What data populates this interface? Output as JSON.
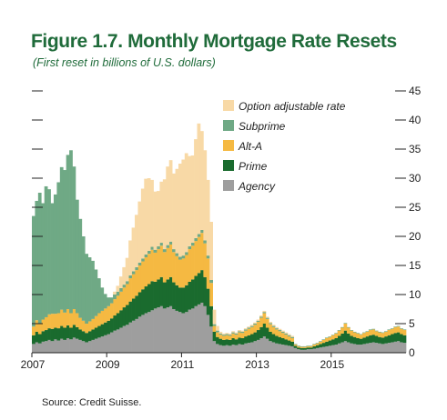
{
  "figure": {
    "title": "Figure 1.7. Monthly Mortgage Rate Resets",
    "subtitle": "(First reset in billions of U.S. dollars)",
    "source": "Source: Credit Suisse."
  },
  "chart_data": {
    "type": "area",
    "stacked": true,
    "title": "Figure 1.7. Monthly Mortgage Rate Resets",
    "subtitle": "(First reset in billions of U.S. dollars)",
    "xlabel": "",
    "ylabel": "",
    "x_start": "2007-01",
    "x_ticks": [
      "2007",
      "2009",
      "2011",
      "2013",
      "2015"
    ],
    "y_ticks": [
      "0",
      "5",
      "10",
      "15",
      "20",
      "25",
      "30",
      "35",
      "40",
      "45"
    ],
    "ylim": [
      0,
      45
    ],
    "y_axis_side": "right",
    "grid": false,
    "legend_position": "top-right",
    "x": [
      "2007-01",
      "2007-02",
      "2007-03",
      "2007-04",
      "2007-05",
      "2007-06",
      "2007-07",
      "2007-08",
      "2007-09",
      "2007-10",
      "2007-11",
      "2007-12",
      "2008-01",
      "2008-02",
      "2008-03",
      "2008-04",
      "2008-05",
      "2008-06",
      "2008-07",
      "2008-08",
      "2008-09",
      "2008-10",
      "2008-11",
      "2008-12",
      "2009-01",
      "2009-02",
      "2009-03",
      "2009-04",
      "2009-05",
      "2009-06",
      "2009-07",
      "2009-08",
      "2009-09",
      "2009-10",
      "2009-11",
      "2009-12",
      "2010-01",
      "2010-02",
      "2010-03",
      "2010-04",
      "2010-05",
      "2010-06",
      "2010-07",
      "2010-08",
      "2010-09",
      "2010-10",
      "2010-11",
      "2010-12",
      "2011-01",
      "2011-02",
      "2011-03",
      "2011-04",
      "2011-05",
      "2011-06",
      "2011-07",
      "2011-08",
      "2011-09",
      "2011-10",
      "2011-11",
      "2011-12",
      "2012-01",
      "2012-02",
      "2012-03",
      "2012-04",
      "2012-05",
      "2012-06",
      "2012-07",
      "2012-08",
      "2012-09",
      "2012-10",
      "2012-11",
      "2012-12",
      "2013-01",
      "2013-02",
      "2013-03",
      "2013-04",
      "2013-05",
      "2013-06",
      "2013-07",
      "2013-08",
      "2013-09",
      "2013-10",
      "2013-11",
      "2013-12",
      "2014-01",
      "2014-02",
      "2014-03",
      "2014-04",
      "2014-05",
      "2014-06",
      "2014-07",
      "2014-08",
      "2014-09",
      "2014-10",
      "2014-11",
      "2014-12",
      "2015-01",
      "2015-02",
      "2015-03",
      "2015-04",
      "2015-05",
      "2015-06",
      "2015-07",
      "2015-08",
      "2015-09",
      "2015-10",
      "2015-11",
      "2015-12",
      "2016-01",
      "2016-02",
      "2016-03",
      "2016-04",
      "2016-05",
      "2016-06",
      "2016-07",
      "2016-08",
      "2016-09",
      "2016-10",
      "2016-11",
      "2016-12"
    ],
    "series": [
      {
        "name": "Agency",
        "color": "#9e9e9e",
        "values": [
          1.5,
          1.8,
          1.6,
          1.9,
          2.0,
          2.2,
          2.0,
          2.3,
          2.1,
          2.4,
          2.2,
          2.5,
          2.3,
          2.6,
          2.4,
          2.2,
          2.0,
          1.8,
          2.0,
          2.2,
          2.4,
          2.6,
          2.8,
          3.0,
          3.2,
          3.5,
          3.8,
          4.0,
          4.3,
          4.6,
          4.8,
          5.2,
          5.5,
          5.8,
          6.2,
          6.5,
          6.8,
          7.0,
          7.3,
          7.6,
          7.8,
          8.0,
          7.6,
          7.8,
          8.0,
          7.5,
          7.2,
          7.0,
          6.8,
          7.0,
          7.4,
          7.6,
          8.0,
          8.3,
          8.6,
          8.0,
          6.5,
          4.5,
          2.0,
          1.5,
          1.3,
          1.2,
          1.3,
          1.2,
          1.4,
          1.3,
          1.5,
          1.4,
          1.6,
          1.7,
          1.8,
          2.0,
          2.2,
          2.5,
          2.8,
          2.4,
          2.0,
          1.8,
          1.6,
          1.5,
          1.4,
          1.3,
          1.2,
          1.1,
          0.8,
          0.6,
          0.5,
          0.5,
          0.6,
          0.6,
          0.7,
          0.8,
          0.9,
          1.0,
          1.1,
          1.2,
          1.3,
          1.4,
          1.6,
          1.8,
          2.0,
          1.8,
          1.6,
          1.5,
          1.4,
          1.4,
          1.5,
          1.6,
          1.7,
          1.8,
          1.7,
          1.6,
          1.5,
          1.6,
          1.7,
          1.8,
          1.9,
          2.0,
          1.8,
          1.7
        ]
      },
      {
        "name": "Prime",
        "color": "#1a6b2e",
        "values": [
          1.5,
          1.8,
          1.6,
          1.8,
          1.9,
          2.0,
          2.1,
          2.0,
          2.1,
          2.2,
          2.1,
          2.2,
          2.0,
          2.2,
          2.0,
          1.8,
          1.7,
          1.6,
          1.7,
          1.8,
          1.9,
          2.0,
          2.1,
          2.2,
          2.3,
          2.4,
          2.6,
          2.8,
          3.0,
          3.2,
          3.4,
          3.6,
          3.8,
          4.0,
          4.2,
          4.4,
          4.6,
          4.8,
          5.0,
          4.6,
          4.8,
          5.0,
          4.5,
          4.8,
          5.0,
          4.6,
          4.4,
          4.2,
          4.4,
          4.6,
          4.8,
          5.0,
          5.2,
          5.4,
          5.6,
          5.0,
          4.5,
          3.5,
          1.6,
          1.2,
          1.1,
          1.0,
          1.0,
          1.0,
          1.1,
          1.0,
          1.1,
          1.1,
          1.2,
          1.3,
          1.4,
          1.5,
          1.7,
          1.9,
          2.2,
          1.9,
          1.6,
          1.4,
          1.3,
          1.2,
          1.1,
          1.0,
          0.9,
          0.8,
          0.4,
          0.3,
          0.3,
          0.3,
          0.3,
          0.3,
          0.4,
          0.5,
          0.6,
          0.7,
          0.8,
          0.9,
          1.0,
          1.1,
          1.3,
          1.5,
          1.8,
          1.5,
          1.3,
          1.2,
          1.1,
          1.0,
          1.1,
          1.2,
          1.3,
          1.3,
          1.2,
          1.1,
          1.1,
          1.2,
          1.3,
          1.4,
          1.5,
          1.5,
          1.4,
          1.3
        ]
      },
      {
        "name": "Alt-A",
        "color": "#f5b942",
        "values": [
          1.5,
          2.0,
          1.8,
          2.0,
          2.2,
          2.4,
          2.6,
          2.4,
          2.6,
          2.8,
          2.6,
          2.8,
          2.5,
          2.7,
          2.4,
          2.0,
          1.8,
          1.6,
          1.7,
          1.8,
          2.0,
          2.2,
          2.3,
          2.4,
          2.5,
          2.6,
          2.8,
          3.0,
          3.2,
          3.4,
          3.6,
          4.0,
          4.2,
          4.4,
          4.6,
          4.8,
          5.0,
          5.2,
          5.4,
          5.0,
          5.2,
          5.4,
          5.2,
          5.4,
          5.6,
          5.2,
          5.0,
          4.8,
          5.0,
          5.2,
          5.6,
          5.8,
          6.0,
          6.2,
          6.4,
          5.8,
          5.2,
          4.0,
          1.0,
          0.8,
          0.7,
          0.7,
          0.7,
          0.7,
          0.8,
          0.8,
          0.9,
          0.9,
          1.0,
          1.1,
          1.2,
          1.3,
          1.4,
          1.6,
          1.8,
          1.5,
          1.3,
          1.2,
          1.1,
          1.0,
          0.9,
          0.8,
          0.7,
          0.6,
          0.2,
          0.2,
          0.2,
          0.2,
          0.2,
          0.2,
          0.3,
          0.3,
          0.4,
          0.5,
          0.6,
          0.6,
          0.7,
          0.8,
          0.9,
          1.0,
          1.2,
          1.0,
          0.9,
          0.8,
          0.8,
          0.7,
          0.8,
          0.8,
          0.9,
          0.9,
          0.8,
          0.8,
          0.8,
          0.8,
          0.9,
          0.9,
          1.0,
          1.0,
          0.9,
          0.9
        ]
      },
      {
        "name": "Subprime",
        "color": "#6fa985",
        "values": [
          19.0,
          20.5,
          22.5,
          20.0,
          22.5,
          21.5,
          19.0,
          20.5,
          22.5,
          24.5,
          24.5,
          26.5,
          28.0,
          24.5,
          19.5,
          17.0,
          14.5,
          12.0,
          11.0,
          10.0,
          8.0,
          6.0,
          4.0,
          2.5,
          1.5,
          1.0,
          0.8,
          0.7,
          0.6,
          0.5,
          0.5,
          0.5,
          0.5,
          0.5,
          0.5,
          0.5,
          0.5,
          0.5,
          0.5,
          0.5,
          0.5,
          0.5,
          0.5,
          0.5,
          0.5,
          0.5,
          0.5,
          0.5,
          0.5,
          0.5,
          0.5,
          0.5,
          0.5,
          0.5,
          0.5,
          0.5,
          0.5,
          0.5,
          0.3,
          0.3,
          0.2,
          0.2,
          0.2,
          0.2,
          0.2,
          0.2,
          0.2,
          0.2,
          0.2,
          0.2,
          0.2,
          0.2,
          0.2,
          0.2,
          0.2,
          0.2,
          0.2,
          0.2,
          0.2,
          0.2,
          0.2,
          0.2,
          0.2,
          0.2,
          0.1,
          0.1,
          0.1,
          0.1,
          0.1,
          0.1,
          0.1,
          0.1,
          0.1,
          0.1,
          0.1,
          0.1,
          0.1,
          0.1,
          0.1,
          0.1,
          0.1,
          0.1,
          0.1,
          0.1,
          0.1,
          0.1,
          0.1,
          0.1,
          0.1,
          0.1,
          0.1,
          0.1,
          0.1,
          0.1,
          0.1,
          0.1,
          0.1,
          0.1,
          0.1,
          0.1
        ]
      },
      {
        "name": "Option adjustable rate",
        "color": "#f8d9a6",
        "values": [
          0,
          0,
          0,
          0,
          0,
          0,
          0,
          0,
          0,
          0,
          0,
          0,
          0,
          0,
          0,
          0,
          0,
          0,
          0,
          0,
          0,
          0,
          0,
          0,
          0,
          0,
          0.5,
          1.0,
          2.0,
          3.0,
          4.0,
          6.0,
          7.5,
          9.0,
          10.5,
          12.0,
          13.0,
          12.5,
          11.5,
          10.0,
          9.5,
          10.5,
          12.0,
          13.5,
          14.0,
          13.0,
          14.5,
          16.0,
          16.5,
          17.0,
          15.5,
          15.0,
          17.0,
          19.0,
          17.0,
          15.5,
          13.0,
          10.0,
          2.5,
          0.8,
          0.3,
          0.2,
          0.2,
          0.2,
          0.2,
          0.2,
          0.2,
          0.2,
          0.2,
          0.2,
          0.2,
          0.2,
          0.2,
          0.2,
          0.2,
          0.2,
          0.2,
          0.2,
          0.2,
          0.2,
          0.2,
          0.2,
          0.2,
          0.2,
          0,
          0,
          0,
          0,
          0,
          0,
          0,
          0,
          0,
          0,
          0,
          0,
          0,
          0,
          0,
          0,
          0,
          0,
          0,
          0,
          0,
          0,
          0,
          0,
          0,
          0,
          0,
          0,
          0,
          0,
          0,
          0,
          0,
          0,
          0,
          0
        ]
      }
    ]
  }
}
